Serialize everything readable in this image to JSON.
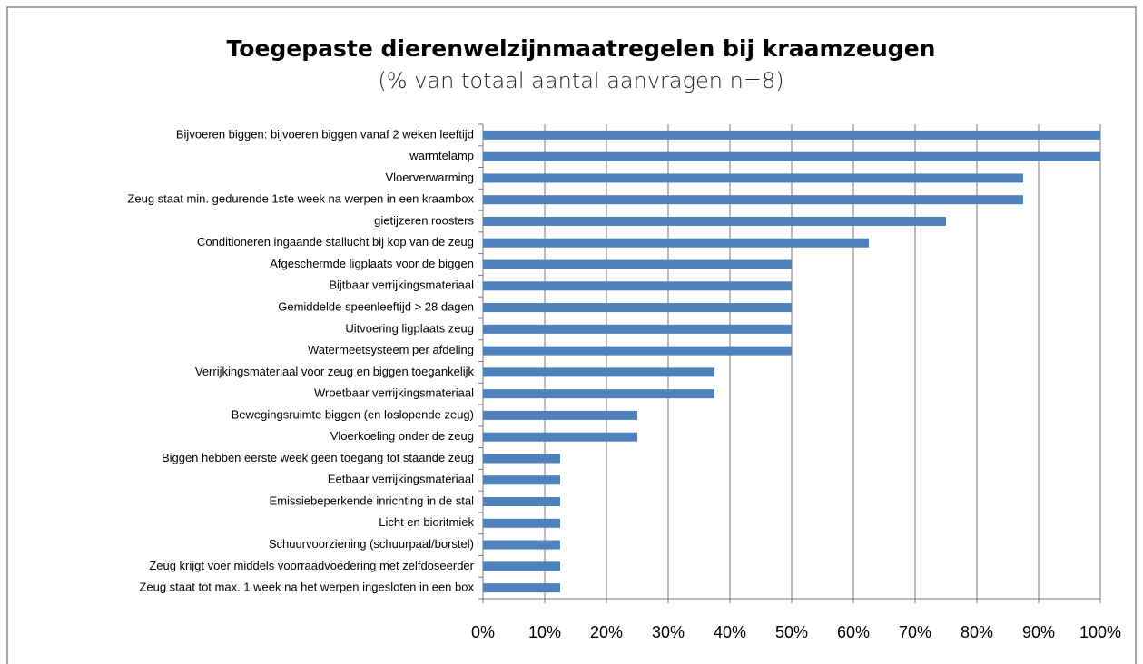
{
  "chart_data": {
    "type": "bar",
    "orientation": "horizontal",
    "title": "Toegepaste dierenwelzijnmaatregelen bij kraamzeugen",
    "subtitle": "(% van totaal aantal aanvragen n=8)",
    "categories": [
      "Bijvoeren biggen: bijvoeren biggen vanaf 2 weken leeftijd",
      "warmtelamp",
      "Vloerverwarming",
      "Zeug staat min. gedurende 1ste week na werpen in een kraambox",
      "gietijzeren roosters",
      "Conditioneren ingaande stallucht bij kop van de zeug",
      "Afgeschermde ligplaats voor de biggen",
      "Bijtbaar verrijkingsmateriaal",
      "Gemiddelde speenleeftijd > 28 dagen",
      "Uitvoering ligplaats zeug",
      "Watermeetsysteem per afdeling",
      "Verrijkingsmateriaal voor zeug en biggen toegankelijk",
      "Wroetbaar verrijkingsmateriaal",
      "Bewegingsruimte biggen (en loslopende zeug)",
      "Vloerkoeling onder de zeug",
      "Biggen hebben eerste week geen toegang tot staande zeug",
      "Eetbaar verrijkingsmateriaal",
      "Emissiebeperkende inrichting in de stal",
      "Licht en bioritmiek",
      "Schuurvoorziening (schuurpaal/borstel)",
      "Zeug krijgt voer middels voorraadvoedering met zelfdoseerder",
      "Zeug staat tot max. 1 week na het werpen ingesloten in een box"
    ],
    "values": [
      100,
      100,
      87.5,
      87.5,
      75,
      62.5,
      50,
      50,
      50,
      50,
      50,
      37.5,
      37.5,
      25,
      25,
      12.5,
      12.5,
      12.5,
      12.5,
      12.5,
      12.5,
      12.5
    ],
    "color": "#4f81bd",
    "xlim": [
      0,
      100
    ],
    "xticks": [
      {
        "value": 0,
        "label": "0%"
      },
      {
        "value": 10,
        "label": "10%"
      },
      {
        "value": 20,
        "label": "20%"
      },
      {
        "value": 30,
        "label": "30%"
      },
      {
        "value": 40,
        "label": "40%"
      },
      {
        "value": 50,
        "label": "50%"
      },
      {
        "value": 60,
        "label": "60%"
      },
      {
        "value": 70,
        "label": "70%"
      },
      {
        "value": 80,
        "label": "80%"
      },
      {
        "value": 90,
        "label": "90%"
      },
      {
        "value": 100,
        "label": "100%"
      }
    ],
    "grid": true
  }
}
